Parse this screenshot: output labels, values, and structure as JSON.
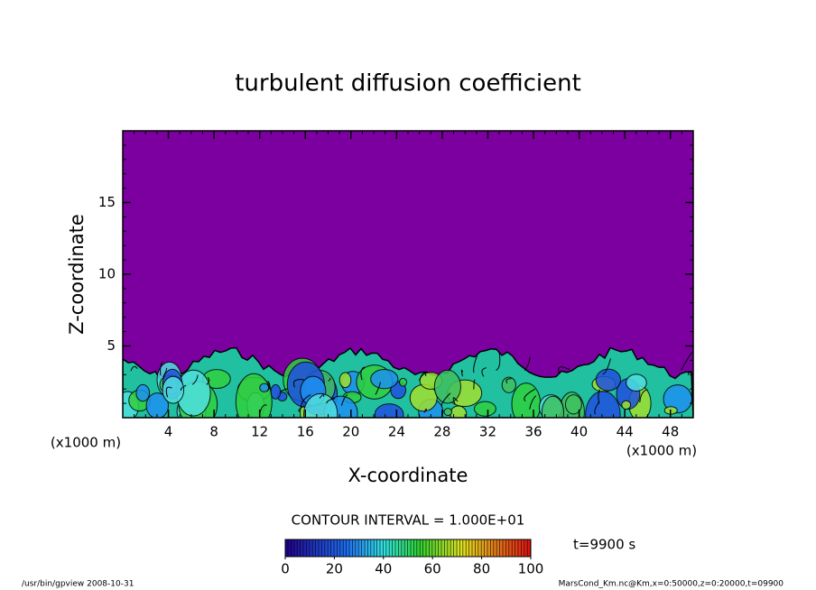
{
  "chart_data": {
    "type": "contour",
    "title": "turbulent diffusion coefficient",
    "x_label": "X-coordinate",
    "y_label": "Z-coordinate",
    "x_unit": "(x1000 m)",
    "xlim": [
      0,
      50
    ],
    "xticks": [
      4,
      8,
      12,
      16,
      20,
      24,
      28,
      32,
      36,
      40,
      44,
      48
    ],
    "ylim": [
      0,
      20
    ],
    "yticks": [
      5,
      10,
      15
    ],
    "background_color": "#7c00a0",
    "colorbar": {
      "label": "CONTOUR INTERVAL = 1.000E+01",
      "lim": [
        0,
        100
      ],
      "ticks": [
        0,
        20,
        40,
        60,
        80,
        100
      ]
    },
    "time_label": "t=9900 s",
    "footer_left": "/usr/bin/gpview   2008-10-31",
    "footer_right": "MarsCond_Km.nc@Km,x=0:50000,z=0:20000,t=09900"
  }
}
